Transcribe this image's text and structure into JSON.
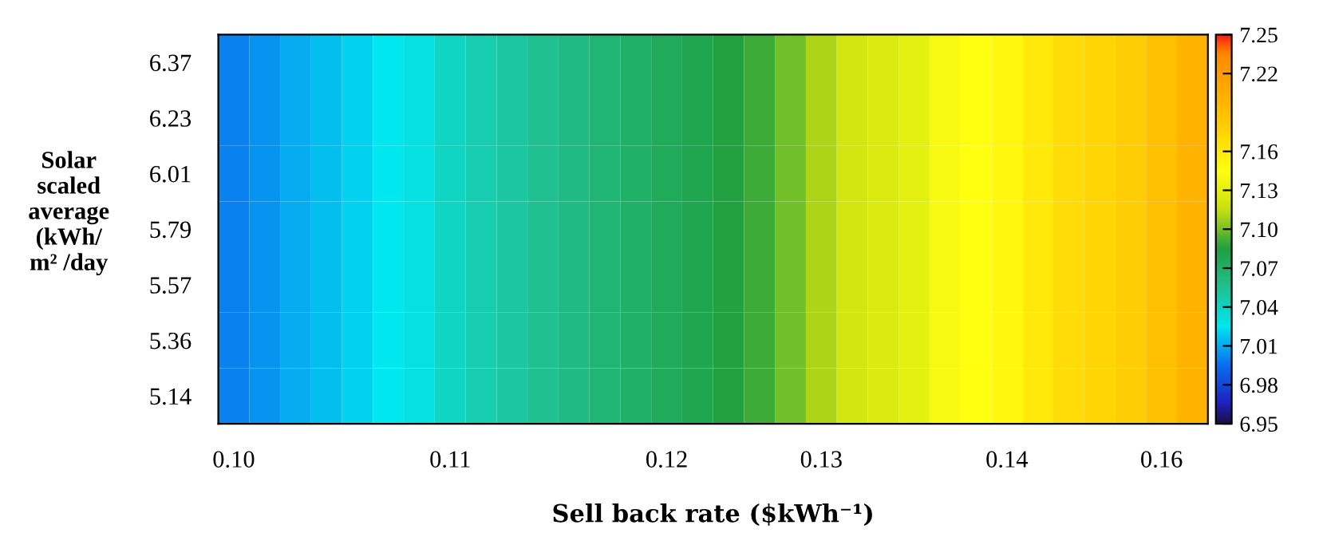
{
  "chart_data": {
    "type": "heatmap",
    "xlabel": "Sell back rate ($kWh⁻¹)",
    "ylabel": "Solar\nscaled\naverage\n(kWh/\nm² /day",
    "categories": [
      "0.10",
      null,
      null,
      null,
      null,
      null,
      null,
      "0.11",
      null,
      null,
      null,
      null,
      null,
      null,
      "0.12",
      null,
      null,
      null,
      null,
      "0.13",
      null,
      null,
      null,
      null,
      null,
      "0.14",
      null,
      null,
      null,
      null,
      "0.16",
      null
    ],
    "y_categories": [
      "6.37",
      "6.23",
      "6.01",
      "5.79",
      "5.57",
      "5.36",
      "5.14"
    ],
    "cells": [
      [
        7.0,
        7.005,
        7.01,
        7.015,
        7.02,
        7.025,
        7.03,
        7.04,
        7.045,
        7.05,
        7.055,
        7.06,
        7.065,
        7.07,
        7.075,
        7.08,
        7.085,
        7.09,
        7.1,
        7.11,
        7.12,
        7.125,
        7.13,
        7.14,
        7.145,
        7.15,
        7.16,
        7.17,
        7.175,
        7.18,
        7.19,
        7.2
      ],
      [
        7.0,
        7.005,
        7.01,
        7.015,
        7.02,
        7.025,
        7.03,
        7.04,
        7.045,
        7.05,
        7.055,
        7.06,
        7.065,
        7.07,
        7.075,
        7.08,
        7.085,
        7.09,
        7.1,
        7.11,
        7.12,
        7.125,
        7.13,
        7.14,
        7.145,
        7.15,
        7.16,
        7.17,
        7.175,
        7.18,
        7.19,
        7.2
      ],
      [
        7.0,
        7.005,
        7.01,
        7.015,
        7.02,
        7.025,
        7.03,
        7.04,
        7.045,
        7.05,
        7.055,
        7.06,
        7.065,
        7.07,
        7.075,
        7.08,
        7.085,
        7.09,
        7.1,
        7.11,
        7.12,
        7.125,
        7.13,
        7.14,
        7.145,
        7.15,
        7.16,
        7.17,
        7.175,
        7.18,
        7.19,
        7.2
      ],
      [
        7.0,
        7.005,
        7.01,
        7.015,
        7.02,
        7.025,
        7.03,
        7.04,
        7.045,
        7.05,
        7.055,
        7.06,
        7.065,
        7.07,
        7.075,
        7.08,
        7.085,
        7.09,
        7.1,
        7.11,
        7.12,
        7.125,
        7.13,
        7.14,
        7.145,
        7.15,
        7.16,
        7.17,
        7.175,
        7.18,
        7.19,
        7.2
      ],
      [
        7.0,
        7.005,
        7.01,
        7.015,
        7.02,
        7.025,
        7.03,
        7.04,
        7.045,
        7.05,
        7.055,
        7.06,
        7.065,
        7.07,
        7.075,
        7.08,
        7.085,
        7.09,
        7.1,
        7.11,
        7.12,
        7.125,
        7.13,
        7.14,
        7.145,
        7.15,
        7.16,
        7.17,
        7.175,
        7.18,
        7.19,
        7.2
      ],
      [
        7.0,
        7.005,
        7.01,
        7.015,
        7.02,
        7.025,
        7.03,
        7.04,
        7.045,
        7.05,
        7.055,
        7.06,
        7.065,
        7.07,
        7.075,
        7.08,
        7.085,
        7.09,
        7.1,
        7.11,
        7.12,
        7.125,
        7.13,
        7.14,
        7.145,
        7.15,
        7.16,
        7.17,
        7.175,
        7.18,
        7.19,
        7.2
      ],
      [
        7.0,
        7.005,
        7.01,
        7.015,
        7.02,
        7.025,
        7.03,
        7.04,
        7.045,
        7.05,
        7.055,
        7.06,
        7.065,
        7.07,
        7.075,
        7.08,
        7.085,
        7.09,
        7.1,
        7.11,
        7.12,
        7.125,
        7.13,
        7.14,
        7.145,
        7.15,
        7.16,
        7.17,
        7.175,
        7.18,
        7.19,
        7.2
      ]
    ],
    "clim": [
      6.95,
      7.25
    ],
    "cticks": [
      6.95,
      6.98,
      7.01,
      7.04,
      7.07,
      {
        "value": 7.1,
        "label": "7.10"
      },
      7.13,
      7.16,
      7.22,
      7.25
    ]
  }
}
